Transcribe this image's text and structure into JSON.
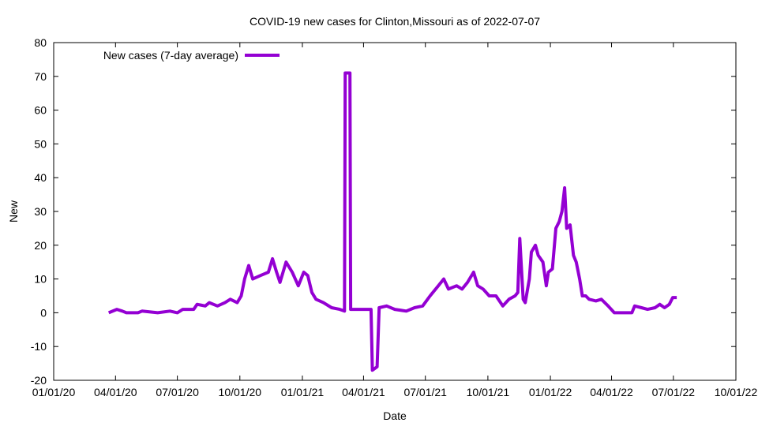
{
  "chart_data": {
    "type": "line",
    "title": "COVID-19 new cases for Clinton,Missouri as of 2022-07-07",
    "xlabel": "Date",
    "ylabel": "New",
    "x_unit": "days since 2020-01-01",
    "xlim": [
      0,
      1004
    ],
    "ylim": [
      -20,
      80
    ],
    "grid": false,
    "legend_position": "top-left",
    "y_ticks": [
      -20,
      -10,
      0,
      10,
      20,
      30,
      40,
      50,
      60,
      70,
      80
    ],
    "x_ticks": [
      {
        "day": 0,
        "label": "01/01/20"
      },
      {
        "day": 91,
        "label": "04/01/20"
      },
      {
        "day": 182,
        "label": "07/01/20"
      },
      {
        "day": 274,
        "label": "10/01/20"
      },
      {
        "day": 366,
        "label": "01/01/21"
      },
      {
        "day": 456,
        "label": "04/01/21"
      },
      {
        "day": 547,
        "label": "07/01/21"
      },
      {
        "day": 639,
        "label": "10/01/21"
      },
      {
        "day": 731,
        "label": "01/01/22"
      },
      {
        "day": 821,
        "label": "04/01/22"
      },
      {
        "day": 912,
        "label": "07/01/22"
      },
      {
        "day": 1004,
        "label": "10/01/22"
      }
    ],
    "series": [
      {
        "name": "New cases (7-day average)",
        "color": "#9400d3",
        "points": [
          [
            81,
            0
          ],
          [
            93,
            1
          ],
          [
            101,
            0.5
          ],
          [
            107,
            0
          ],
          [
            124,
            0
          ],
          [
            130,
            0.5
          ],
          [
            153,
            0
          ],
          [
            171,
            0.5
          ],
          [
            182,
            0
          ],
          [
            190,
            1
          ],
          [
            206,
            1
          ],
          [
            211,
            2.5
          ],
          [
            223,
            2
          ],
          [
            229,
            3
          ],
          [
            241,
            2
          ],
          [
            252,
            3
          ],
          [
            260,
            4
          ],
          [
            270,
            3
          ],
          [
            276,
            5
          ],
          [
            281,
            10
          ],
          [
            287,
            14
          ],
          [
            293,
            10
          ],
          [
            304,
            11
          ],
          [
            316,
            12
          ],
          [
            322,
            16
          ],
          [
            328,
            12
          ],
          [
            333,
            9
          ],
          [
            342,
            15
          ],
          [
            351,
            12
          ],
          [
            360,
            8
          ],
          [
            368,
            12
          ],
          [
            374,
            11
          ],
          [
            380,
            6
          ],
          [
            386,
            4
          ],
          [
            397,
            3
          ],
          [
            409,
            1.5
          ],
          [
            421,
            1
          ],
          [
            428,
            0.5
          ],
          [
            429,
            71
          ],
          [
            436,
            71
          ],
          [
            437,
            1
          ],
          [
            456,
            1
          ],
          [
            467,
            1
          ],
          [
            469,
            -17
          ],
          [
            476,
            -16
          ],
          [
            479,
            1.5
          ],
          [
            490,
            2
          ],
          [
            502,
            1
          ],
          [
            519,
            0.5
          ],
          [
            531,
            1.5
          ],
          [
            543,
            2
          ],
          [
            554,
            5
          ],
          [
            566,
            8
          ],
          [
            574,
            10
          ],
          [
            581,
            7
          ],
          [
            593,
            8
          ],
          [
            601,
            7
          ],
          [
            609,
            9
          ],
          [
            618,
            12
          ],
          [
            624,
            8
          ],
          [
            632,
            7
          ],
          [
            641,
            5
          ],
          [
            651,
            5
          ],
          [
            661,
            2
          ],
          [
            670,
            4
          ],
          [
            679,
            5
          ],
          [
            683,
            6
          ],
          [
            686,
            22
          ],
          [
            691,
            4
          ],
          [
            694,
            3
          ],
          [
            700,
            10
          ],
          [
            703,
            18
          ],
          [
            709,
            20
          ],
          [
            713,
            17
          ],
          [
            720,
            15
          ],
          [
            725,
            8
          ],
          [
            728,
            12
          ],
          [
            734,
            13
          ],
          [
            739,
            25
          ],
          [
            744,
            27
          ],
          [
            748,
            30
          ],
          [
            752,
            37
          ],
          [
            755,
            25
          ],
          [
            760,
            26
          ],
          [
            765,
            17
          ],
          [
            769,
            15
          ],
          [
            774,
            10
          ],
          [
            778,
            5
          ],
          [
            783,
            5
          ],
          [
            788,
            4
          ],
          [
            798,
            3.5
          ],
          [
            806,
            4
          ],
          [
            816,
            2
          ],
          [
            825,
            0
          ],
          [
            851,
            0
          ],
          [
            855,
            2
          ],
          [
            865,
            1.5
          ],
          [
            874,
            1
          ],
          [
            885,
            1.5
          ],
          [
            892,
            2.5
          ],
          [
            899,
            1.5
          ],
          [
            906,
            2.5
          ],
          [
            911,
            4.5
          ],
          [
            917,
            4.5
          ]
        ]
      }
    ]
  }
}
